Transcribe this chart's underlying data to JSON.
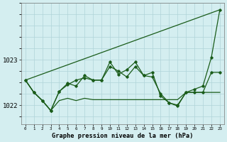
{
  "title": "Graphe pression niveau de la mer (hPa)",
  "background_color": "#d4eef0",
  "grid_color": "#afd4d8",
  "line_color": "#1a5c1a",
  "x_ticks": [
    0,
    1,
    2,
    3,
    4,
    5,
    6,
    7,
    8,
    9,
    10,
    11,
    12,
    13,
    14,
    15,
    16,
    17,
    18,
    19,
    20,
    21,
    22,
    23
  ],
  "ylim": [
    1021.58,
    1024.25
  ],
  "yticks": [
    1022,
    1023
  ],
  "series_trend": [
    1022.55,
    1024.1
  ],
  "series_flat": [
    1022.55,
    1022.28,
    1022.1,
    1021.88,
    1022.1,
    1022.15,
    1022.1,
    1022.15,
    1022.12,
    1022.12,
    1022.12,
    1022.12,
    1022.12,
    1022.12,
    1022.12,
    1022.12,
    1022.12,
    1022.12,
    1022.12,
    1022.28,
    1022.28,
    1022.28,
    1022.28,
    1022.28
  ],
  "series_jagged1": [
    1022.55,
    1022.28,
    1022.1,
    1021.88,
    1022.3,
    1022.45,
    1022.55,
    1022.6,
    1022.55,
    1022.55,
    1022.85,
    1022.75,
    1022.62,
    1022.85,
    1022.65,
    1022.62,
    1022.25,
    1022.05,
    1022.0,
    1022.28,
    1022.28,
    1022.28,
    1022.72,
    1022.72
  ],
  "series_jagged2": [
    1022.55,
    1022.28,
    1022.1,
    1021.88,
    1022.3,
    1022.48,
    1022.42,
    1022.65,
    1022.55,
    1022.55,
    1022.95,
    1022.68,
    1022.78,
    1022.95,
    1022.65,
    1022.72,
    1022.2,
    1022.05,
    1021.98,
    1022.28,
    1022.35,
    1022.42,
    1023.05,
    1024.1
  ]
}
